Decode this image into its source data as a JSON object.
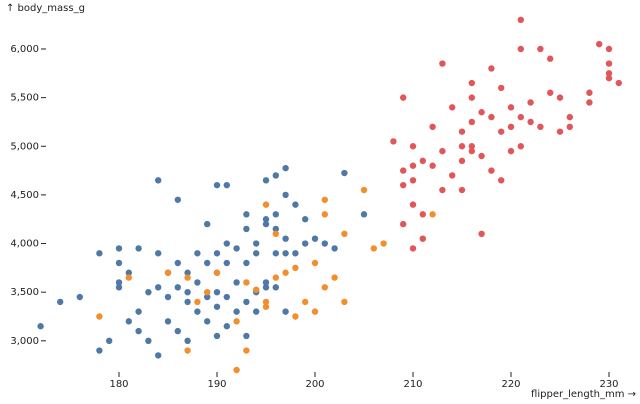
{
  "chart_data": {
    "type": "scatter",
    "y_label": "↑ body_mass_g",
    "x_label": "flipper_length_mm →",
    "xlim": [
      170,
      232
    ],
    "ylim": [
      2700,
      6300
    ],
    "xticks": [
      180,
      190,
      200,
      210,
      220,
      230
    ],
    "yticks": [
      {
        "value": 3000,
        "label": "3,000"
      },
      {
        "value": 3500,
        "label": "3,500"
      },
      {
        "value": 4000,
        "label": "4,000"
      },
      {
        "value": 4500,
        "label": "4,500"
      },
      {
        "value": 5000,
        "label": "5,000"
      },
      {
        "value": 5500,
        "label": "5,500"
      },
      {
        "value": 6000,
        "label": "6,000"
      }
    ],
    "grid": false,
    "series": [
      {
        "color": "#4e79a7",
        "x": [
          172,
          174,
          176,
          178,
          178,
          179,
          180,
          180,
          180,
          180,
          181,
          181,
          182,
          182,
          182,
          183,
          183,
          184,
          184,
          184,
          184,
          185,
          185,
          185,
          186,
          186,
          186,
          186,
          187,
          187,
          187,
          187,
          188,
          188,
          188,
          189,
          189,
          189,
          189,
          190,
          190,
          190,
          190,
          190,
          190,
          191,
          191,
          191,
          191,
          191,
          192,
          192,
          192,
          193,
          193,
          193,
          193,
          194,
          194,
          194,
          194,
          195,
          195,
          195,
          195,
          195,
          196,
          196,
          196,
          196,
          196,
          197,
          197,
          197,
          197,
          198,
          198,
          199,
          199,
          200,
          201,
          202,
          203,
          197,
          193,
          205
        ],
        "values": [
          3150,
          3400,
          3450,
          3900,
          2900,
          3000,
          3950,
          3800,
          3600,
          3550,
          3700,
          3200,
          3300,
          3100,
          3950,
          3500,
          3000,
          3550,
          3900,
          4650,
          2850,
          3700,
          3450,
          3200,
          4450,
          3550,
          3800,
          3100,
          3400,
          3700,
          3000,
          3500,
          3300,
          3600,
          3900,
          3200,
          3450,
          4200,
          3800,
          3700,
          3900,
          4600,
          3050,
          3500,
          3350,
          3800,
          3450,
          4000,
          3150,
          4600,
          3600,
          3950,
          3300,
          3400,
          3800,
          4300,
          3050,
          3500,
          4000,
          3900,
          3300,
          3550,
          4250,
          3600,
          4200,
          4650,
          4700,
          3900,
          4150,
          3550,
          4300,
          4500,
          4050,
          3300,
          4775,
          3900,
          4400,
          4000,
          4250,
          4050,
          4000,
          3950,
          4725,
          3900,
          4150,
          4300
        ]
      },
      {
        "color": "#f28e2c",
        "x": [
          178,
          181,
          185,
          187,
          187,
          188,
          189,
          190,
          192,
          193,
          193,
          192,
          194,
          195,
          195,
          195,
          196,
          196,
          197,
          198,
          198,
          199,
          200,
          200,
          201,
          201,
          201,
          202,
          203,
          203,
          205,
          206,
          207,
          212
        ],
        "values": [
          3250,
          3650,
          3700,
          2900,
          3650,
          3400,
          3500,
          3700,
          3200,
          3600,
          2900,
          2700,
          3525,
          3400,
          4400,
          3350,
          3650,
          4100,
          3700,
          3250,
          3750,
          3400,
          3800,
          3300,
          4300,
          3550,
          4450,
          3650,
          4100,
          3400,
          4550,
          3950,
          4000,
          4300
        ]
      },
      {
        "color": "#e15759",
        "x": [
          208,
          209,
          209,
          209,
          210,
          210,
          210,
          210,
          210,
          211,
          211,
          211,
          209,
          212,
          212,
          213,
          213,
          213,
          214,
          214,
          215,
          215,
          215,
          215,
          216,
          216,
          216,
          216,
          216,
          217,
          217,
          217,
          218,
          218,
          218,
          219,
          219,
          219,
          220,
          220,
          220,
          221,
          221,
          221,
          221,
          222,
          222,
          223,
          223,
          224,
          224,
          225,
          225,
          226,
          226,
          228,
          228,
          229,
          230,
          230,
          230,
          230,
          231
        ],
        "values": [
          5050,
          4600,
          4750,
          4200,
          4400,
          4650,
          4800,
          5000,
          3950,
          4850,
          4300,
          4050,
          5500,
          4800,
          5200,
          4550,
          4950,
          5850,
          4700,
          5400,
          5000,
          4850,
          5150,
          4550,
          5000,
          5250,
          4950,
          5650,
          5500,
          4900,
          4100,
          5350,
          4750,
          5800,
          5300,
          5600,
          5150,
          4650,
          5200,
          5400,
          4950,
          5300,
          5000,
          6000,
          6300,
          5450,
          5250,
          6000,
          5200,
          5550,
          5900,
          5500,
          5150,
          5300,
          5200,
          5550,
          5450,
          6050,
          5750,
          5700,
          5850,
          6000,
          5650
        ]
      }
    ]
  }
}
